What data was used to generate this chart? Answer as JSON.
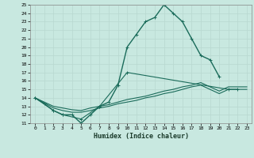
{
  "xlabel": "Humidex (Indice chaleur)",
  "background_color": "#c8e8e0",
  "grid_color": "#b8d8d0",
  "line_color": "#1a6b5a",
  "xlim": [
    -0.5,
    23.5
  ],
  "ylim": [
    11,
    25
  ],
  "xticks": [
    0,
    1,
    2,
    3,
    4,
    5,
    6,
    7,
    8,
    9,
    10,
    11,
    12,
    13,
    14,
    15,
    16,
    17,
    18,
    19,
    20,
    21,
    22,
    23
  ],
  "yticks": [
    11,
    12,
    13,
    14,
    15,
    16,
    17,
    18,
    19,
    20,
    21,
    22,
    23,
    24,
    25
  ],
  "series": [
    {
      "x": [
        0,
        1,
        2,
        3,
        4,
        5,
        6,
        7,
        8,
        9,
        10,
        11,
        12,
        13,
        14,
        15,
        16,
        17,
        18,
        19,
        20
      ],
      "y": [
        14.0,
        13.3,
        12.5,
        12.0,
        12.0,
        11.0,
        12.0,
        13.0,
        13.5,
        15.5,
        20.0,
        21.5,
        23.0,
        23.5,
        25.0,
        24.0,
        23.0,
        21.0,
        19.0,
        18.5,
        16.5
      ],
      "marker": true,
      "lw": 1.0
    },
    {
      "x": [
        0,
        2,
        3,
        5,
        7,
        10,
        21,
        22
      ],
      "y": [
        14.0,
        12.5,
        12.0,
        11.5,
        13.0,
        17.0,
        15.0,
        15.0
      ],
      "marker": true,
      "lw": 0.8
    },
    {
      "x": [
        0,
        2,
        3,
        4,
        5,
        6,
        7,
        8,
        9,
        10,
        11,
        12,
        13,
        14,
        15,
        16,
        17,
        18,
        19,
        20,
        21,
        22,
        23
      ],
      "y": [
        14.0,
        12.8,
        12.5,
        12.3,
        12.3,
        12.5,
        12.8,
        13.0,
        13.3,
        13.5,
        13.7,
        14.0,
        14.2,
        14.5,
        14.7,
        15.0,
        15.3,
        15.5,
        15.0,
        14.5,
        15.0,
        15.0,
        15.0
      ],
      "marker": false,
      "lw": 0.8
    },
    {
      "x": [
        0,
        2,
        3,
        4,
        5,
        6,
        7,
        8,
        9,
        10,
        11,
        12,
        13,
        14,
        15,
        16,
        17,
        18,
        19,
        20,
        21,
        22,
        23
      ],
      "y": [
        14.0,
        13.0,
        12.8,
        12.6,
        12.5,
        12.8,
        13.0,
        13.2,
        13.5,
        13.8,
        14.0,
        14.2,
        14.5,
        14.8,
        15.0,
        15.3,
        15.5,
        15.8,
        15.3,
        14.8,
        15.3,
        15.3,
        15.3
      ],
      "marker": false,
      "lw": 0.8
    }
  ]
}
